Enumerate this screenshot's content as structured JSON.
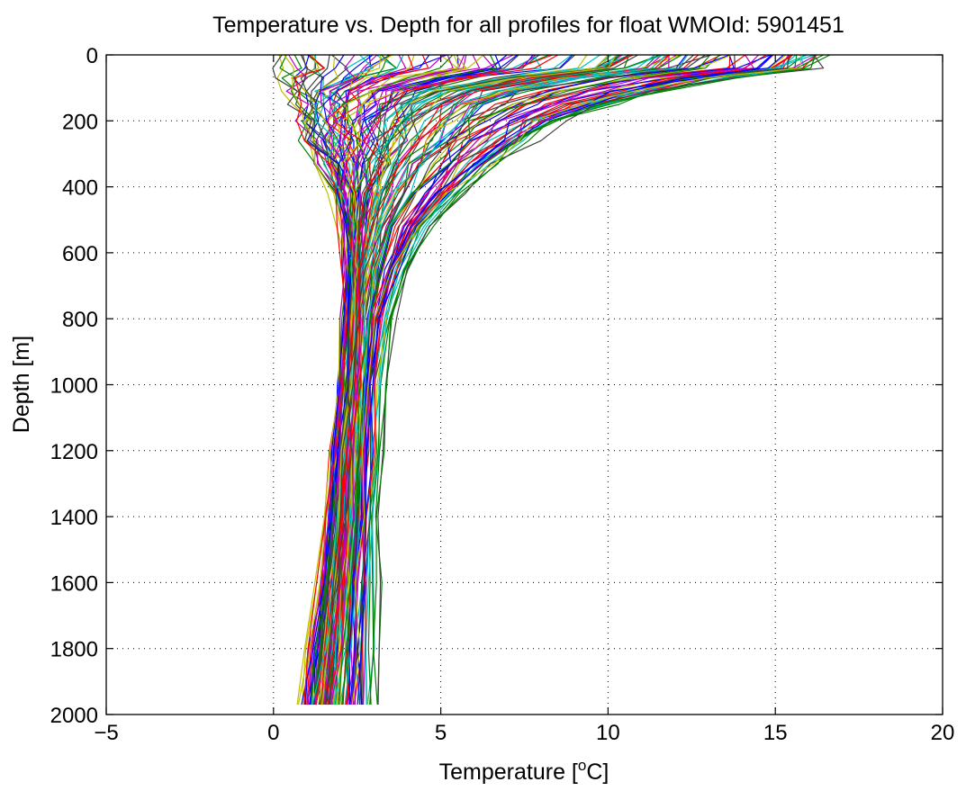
{
  "chart_data": {
    "type": "line",
    "title": "Temperature vs. Depth for all profiles for float WMOId: 5901451",
    "xlabel": "Temperature [",
    "xlabel_superscript": "o",
    "xlabel_suffix": "C]",
    "ylabel": "Depth [m]",
    "xlim": [
      -5,
      20
    ],
    "ylim": [
      0,
      2000
    ],
    "y_reversed": true,
    "grid": true,
    "grid_style": "dotted",
    "x_ticks": [
      "−5",
      "0",
      "5",
      "10",
      "15",
      "20"
    ],
    "y_ticks": [
      "0",
      "200",
      "400",
      "600",
      "800",
      "1000",
      "1200",
      "1400",
      "1600",
      "1800",
      "2000"
    ],
    "colors": [
      "#0000ff",
      "#008000",
      "#ff0000",
      "#00bfbf",
      "#bf00bf",
      "#bfbf00",
      "#404040"
    ],
    "depth_levels": [
      0,
      40,
      70,
      110,
      150,
      200,
      260,
      330,
      420,
      520,
      650,
      800,
      1000,
      1200,
      1400,
      1600,
      1800,
      1970
    ],
    "profile_count": 140,
    "representative_profiles": [
      {
        "depth": [
          0,
          40,
          70,
          110,
          150,
          200,
          260,
          330,
          420,
          520,
          650,
          800,
          1000,
          1200,
          1400,
          1600,
          1800,
          1970
        ],
        "temperature": [
          16.5,
          16.0,
          13.5,
          11.5,
          10.0,
          8.5,
          7.5,
          6.5,
          5.5,
          4.5,
          3.8,
          3.3,
          3.0,
          2.9,
          2.8,
          2.75,
          2.7,
          2.7
        ]
      },
      {
        "depth": [
          0,
          40,
          70,
          110,
          150,
          200,
          260,
          330,
          420,
          520,
          650,
          800,
          1000,
          1200,
          1400,
          1600,
          1800,
          1970
        ],
        "temperature": [
          10.0,
          9.5,
          7.0,
          5.0,
          4.2,
          3.8,
          3.5,
          3.2,
          2.9,
          2.7,
          2.5,
          2.4,
          2.3,
          2.2,
          2.1,
          1.9,
          1.7,
          1.5
        ]
      },
      {
        "depth": [
          0,
          40,
          70,
          110,
          150,
          200,
          260,
          330,
          420,
          520,
          650,
          800,
          1000,
          1200,
          1400,
          1600,
          1800,
          1970
        ],
        "temperature": [
          0.0,
          0.1,
          0.3,
          0.4,
          0.6,
          0.8,
          1.0,
          1.4,
          1.8,
          2.1,
          2.3,
          2.3,
          2.2,
          2.0,
          1.8,
          1.6,
          1.3,
          1.1
        ]
      }
    ]
  }
}
